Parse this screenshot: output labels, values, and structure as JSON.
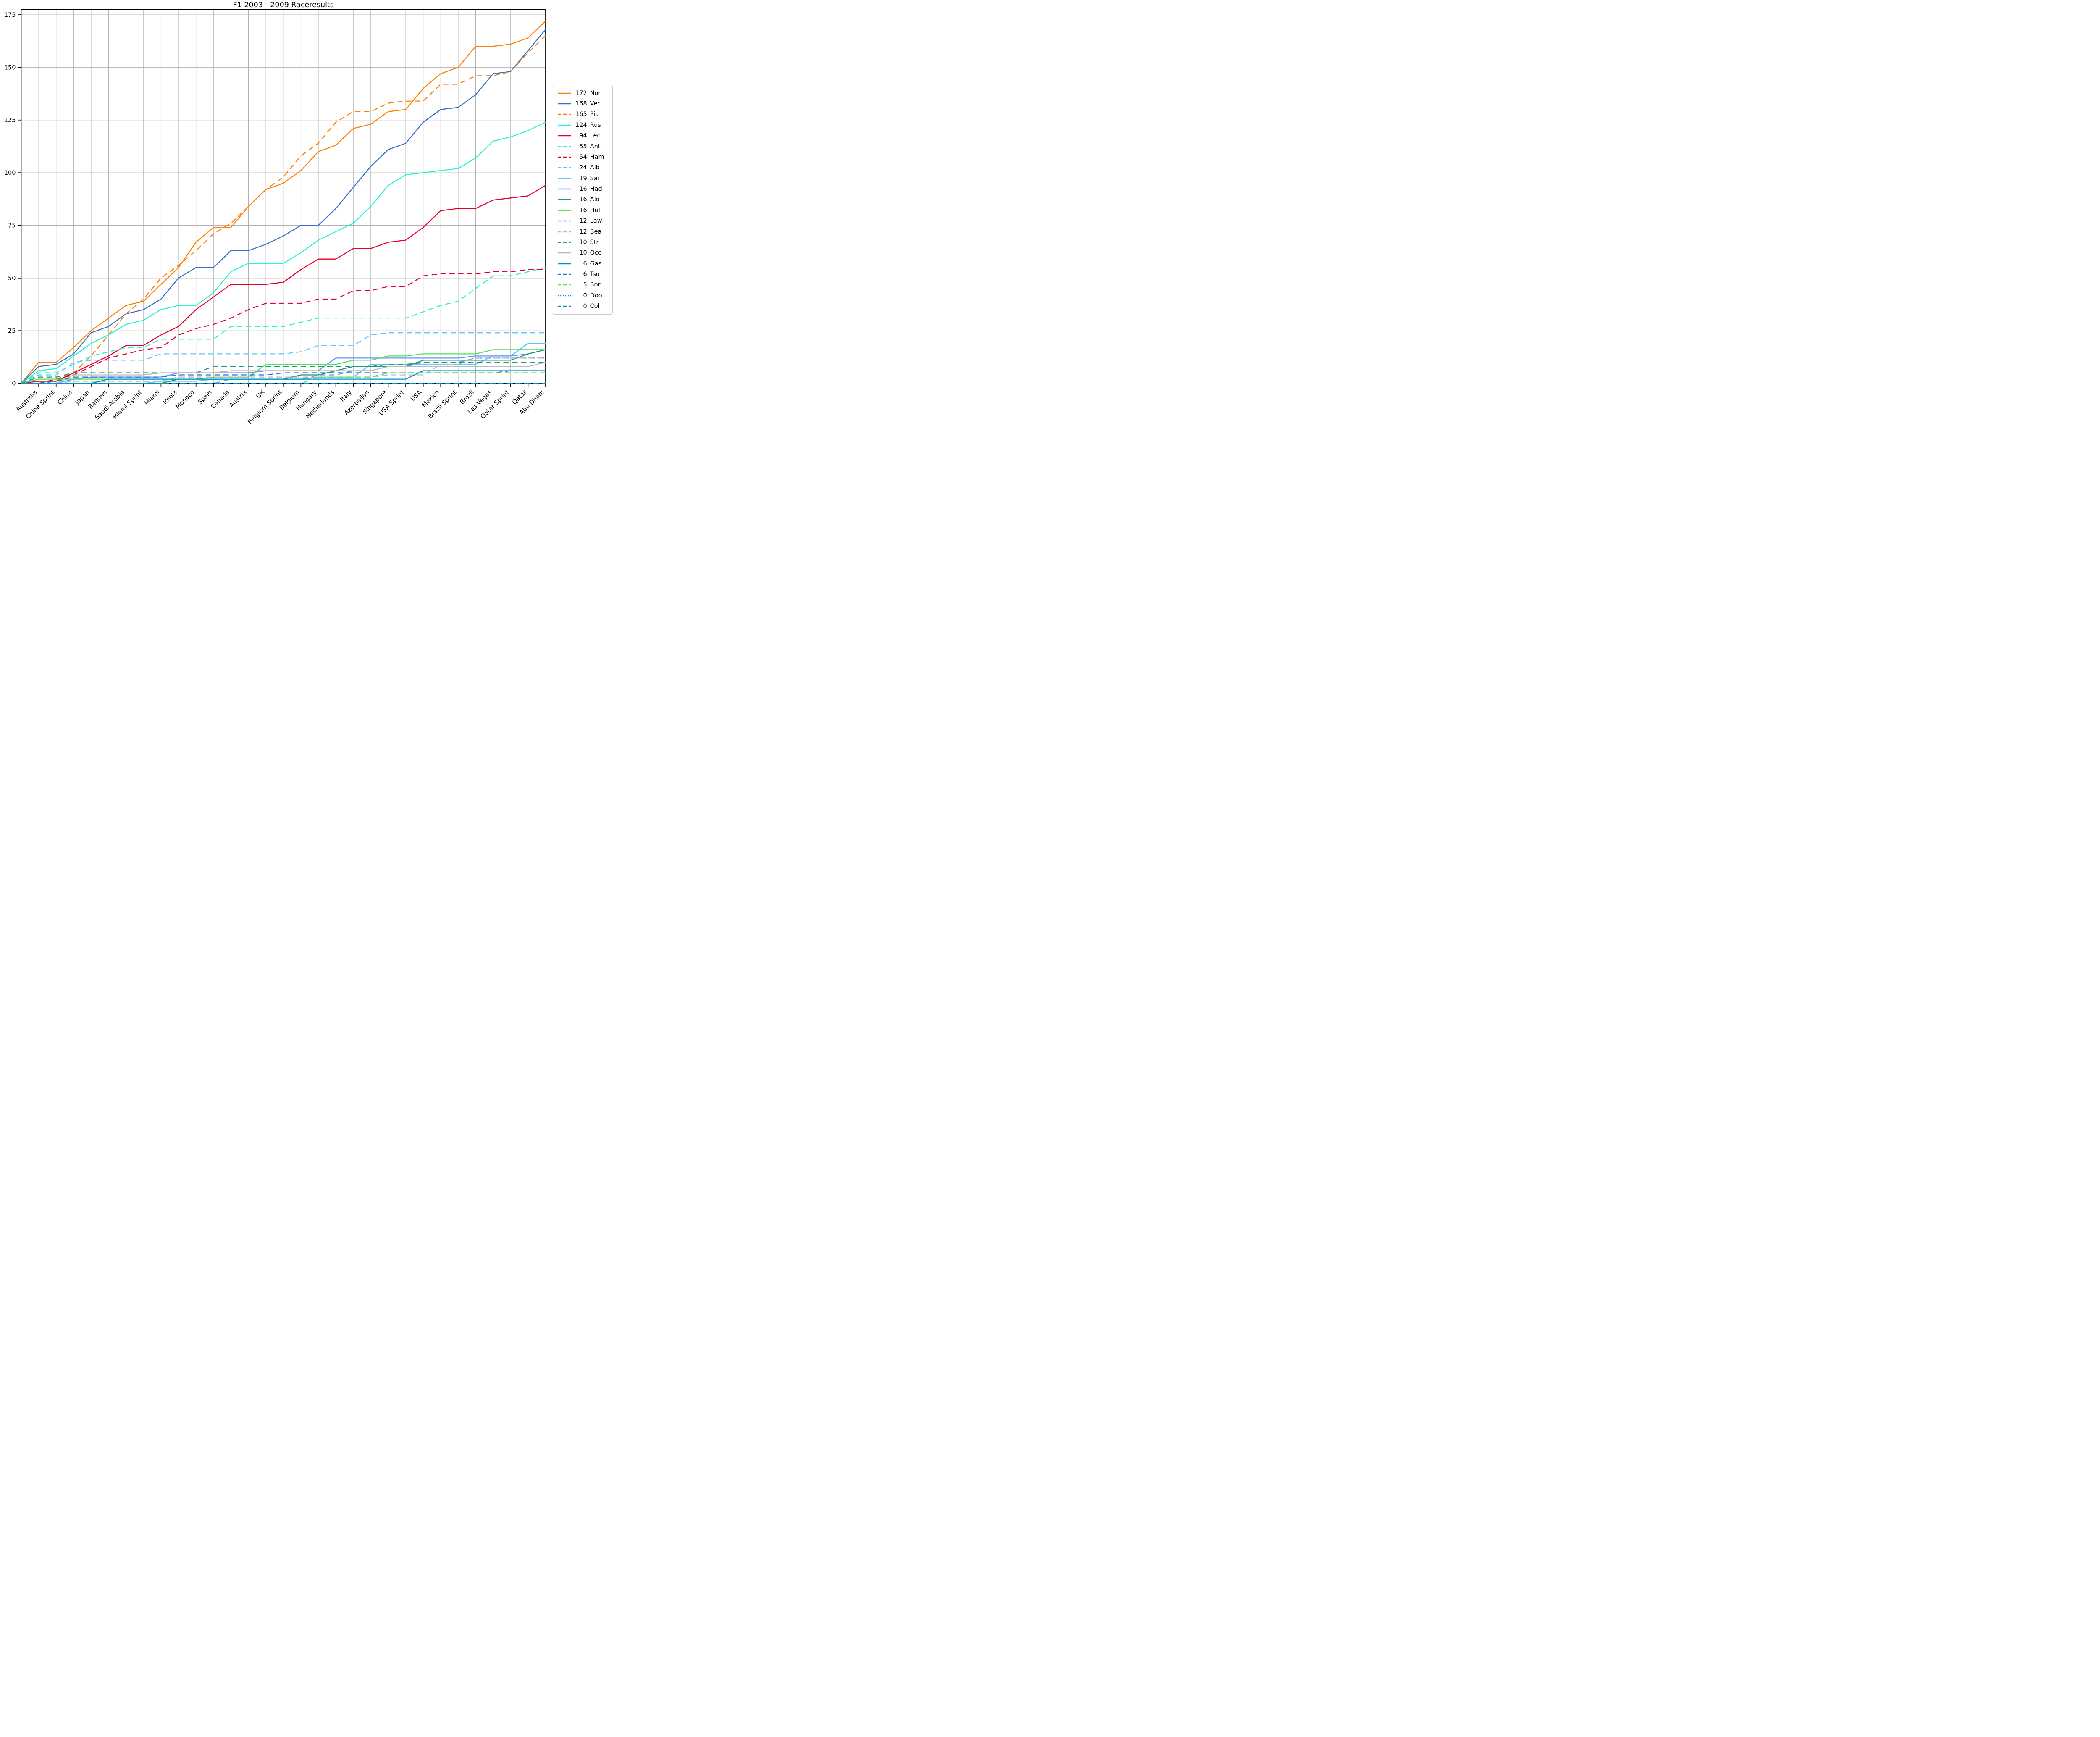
{
  "title": "F1 2003 - 2009 Raceresults",
  "chart_data": {
    "type": "line",
    "title": "F1 2003 - 2009 Raceresults",
    "xlabel": "",
    "ylabel": "",
    "grid": true,
    "legend_position": "right-outside",
    "ylim": [
      0,
      177
    ],
    "y_ticks": [
      0,
      25,
      50,
      75,
      100,
      125,
      150,
      175
    ],
    "x_tick_rotation": -45,
    "lines_start_at_zero_on_left_spine": true,
    "categories": [
      "Australia",
      "China Sprint",
      "China",
      "Japan",
      "Bahrain",
      "Saudi Arabia",
      "Miami Sprint",
      "Miami",
      "Imola",
      "Monaco",
      "Spain",
      "Canada",
      "Austria",
      "UK",
      "Belgium Sprint",
      "Belgium",
      "Hungary",
      "Netherlands",
      "Italy",
      "Azerbaijan",
      "Singapore",
      "USA Sprint",
      "USA",
      "Mexico",
      "Brazil Sprint",
      "Brazil",
      "Las Vegas",
      "Qatar Sprint",
      "Qatar",
      "Abu Dhabi"
    ],
    "series": [
      {
        "abbr": "Nor",
        "total": 172,
        "color": "#FF8000",
        "style": "solid",
        "values": [
          10,
          10,
          17,
          25,
          31,
          37,
          39,
          47,
          55,
          67,
          74,
          74,
          84,
          92,
          95,
          101,
          110,
          113,
          121,
          123,
          129,
          130,
          140,
          147,
          150,
          160,
          160,
          161,
          164,
          172
        ]
      },
      {
        "abbr": "Ver",
        "total": 168,
        "color": "#3671C6",
        "style": "solid",
        "values": [
          8,
          9,
          14,
          24,
          27,
          33,
          35,
          40,
          50,
          55,
          55,
          63,
          63,
          66,
          70,
          75,
          75,
          83,
          93,
          103,
          111,
          114,
          124,
          130,
          131,
          137,
          147,
          148,
          158,
          168
        ]
      },
      {
        "abbr": "Pia",
        "total": 165,
        "color": "#FF8000",
        "style": "dashed",
        "values": [
          0,
          2,
          5,
          13,
          23,
          33,
          40,
          50,
          56,
          63,
          71,
          76,
          84,
          92,
          98,
          108,
          114,
          124,
          129,
          129,
          133,
          134,
          134,
          142,
          142,
          146,
          146,
          148,
          157,
          165
        ]
      },
      {
        "abbr": "Rus",
        "total": 124,
        "color": "#27F4D2",
        "style": "solid",
        "values": [
          6,
          7,
          13,
          19,
          23,
          28,
          30,
          35,
          37,
          37,
          43,
          53,
          57,
          57,
          57,
          62,
          68,
          72,
          76,
          84,
          94,
          99,
          100,
          101,
          102,
          107,
          115,
          117,
          120,
          124
        ]
      },
      {
        "abbr": "Lec",
        "total": 94,
        "color": "#E8002D",
        "style": "solid",
        "values": [
          1,
          1,
          5,
          9,
          13,
          18,
          18,
          23,
          27,
          35,
          41,
          47,
          47,
          47,
          48,
          54,
          59,
          59,
          64,
          64,
          67,
          68,
          74,
          82,
          83,
          83,
          87,
          88,
          89,
          94
        ]
      },
      {
        "abbr": "Ant",
        "total": 55,
        "color": "#27F4D2",
        "style": "dashed",
        "values": [
          5,
          5,
          9,
          13,
          15,
          17,
          17,
          21,
          21,
          21,
          21,
          27,
          27,
          27,
          27,
          29,
          31,
          31,
          31,
          31,
          31,
          31,
          34,
          37,
          39,
          45,
          51,
          51,
          53,
          55
        ]
      },
      {
        "abbr": "Ham",
        "total": 54,
        "color": "#E8002D",
        "style": "dashed",
        "values": [
          0,
          2,
          4,
          8,
          12,
          14,
          16,
          17,
          23,
          26,
          28,
          31,
          35,
          38,
          38,
          38,
          40,
          40,
          44,
          44,
          46,
          46,
          51,
          52,
          52,
          52,
          53,
          53,
          54,
          54
        ]
      },
      {
        "abbr": "Alb",
        "total": 24,
        "color": "#64C4FF",
        "style": "dashed",
        "values": [
          4,
          4,
          10,
          11,
          11,
          11,
          11,
          14,
          14,
          14,
          14,
          14,
          14,
          14,
          14,
          15,
          18,
          18,
          18,
          23,
          24,
          24,
          24,
          24,
          24,
          24,
          24,
          24,
          24,
          24
        ]
      },
      {
        "abbr": "Sai",
        "total": 19,
        "color": "#64C4FF",
        "style": "solid",
        "values": [
          0,
          0,
          0,
          0,
          0,
          0,
          0,
          1,
          1,
          1,
          2,
          2,
          2,
          2,
          2,
          2,
          3,
          3,
          3,
          9,
          9,
          9,
          9,
          9,
          9,
          9,
          13,
          13,
          19,
          19
        ]
      },
      {
        "abbr": "Had",
        "total": 16,
        "color": "#6692FF",
        "style": "solid",
        "values": [
          0,
          0,
          2,
          3,
          3,
          3,
          3,
          3,
          5,
          5,
          5,
          5,
          5,
          6,
          6,
          6,
          6,
          12,
          12,
          12,
          12,
          12,
          12,
          12,
          12,
          13,
          13,
          13,
          14,
          16
        ]
      },
      {
        "abbr": "Alo",
        "total": 16,
        "color": "#229971",
        "style": "solid",
        "values": [
          0,
          0,
          0,
          0,
          0,
          0,
          0,
          0,
          2,
          2,
          2,
          2,
          2,
          2,
          2,
          4,
          4,
          6,
          8,
          8,
          8,
          8,
          11,
          11,
          11,
          11,
          11,
          11,
          14,
          16
        ]
      },
      {
        "abbr": "Hül",
        "total": 16,
        "color": "#52E252",
        "style": "solid",
        "values": [
          2,
          2,
          2,
          2,
          2,
          2,
          2,
          2,
          2,
          2,
          3,
          3,
          3,
          9,
          9,
          9,
          9,
          9,
          11,
          11,
          13,
          13,
          14,
          14,
          14,
          14,
          16,
          16,
          16,
          16
        ]
      },
      {
        "abbr": "Law",
        "total": 12,
        "color": "#6692FF",
        "style": "dashed",
        "values": [
          0,
          0,
          0,
          0,
          0,
          0,
          0,
          0,
          0,
          0,
          0,
          2,
          2,
          2,
          2,
          2,
          4,
          4,
          6,
          6,
          8,
          8,
          10,
          10,
          10,
          12,
          12,
          12,
          12,
          12
        ]
      },
      {
        "abbr": "Bea",
        "total": 12,
        "color": "#B6BABD",
        "style": "dashed",
        "values": [
          0,
          0,
          1,
          1,
          1,
          1,
          1,
          1,
          3,
          3,
          3,
          3,
          3,
          3,
          3,
          3,
          3,
          3,
          3,
          3,
          4,
          4,
          4,
          9,
          9,
          12,
          12,
          12,
          12,
          12
        ]
      },
      {
        "abbr": "Str",
        "total": 10,
        "color": "#229971",
        "style": "dashed",
        "values": [
          3,
          3,
          5,
          5,
          5,
          5,
          5,
          5,
          5,
          5,
          8,
          8,
          8,
          8,
          8,
          8,
          8,
          8,
          8,
          8,
          9,
          9,
          10,
          10,
          10,
          10,
          10,
          10,
          10,
          10
        ]
      },
      {
        "abbr": "Oco",
        "total": 10,
        "color": "#B6BABD",
        "style": "solid",
        "values": [
          0,
          0,
          4,
          4,
          4,
          4,
          4,
          5,
          5,
          5,
          5,
          6,
          6,
          6,
          6,
          6,
          6,
          6,
          6,
          6,
          8,
          8,
          8,
          8,
          8,
          8,
          8,
          8,
          8,
          10
        ]
      },
      {
        "abbr": "Gas",
        "total": 6,
        "color": "#0093CC",
        "style": "solid",
        "values": [
          0,
          0,
          0,
          0,
          2,
          2,
          2,
          2,
          2,
          2,
          2,
          2,
          2,
          2,
          2,
          2,
          2,
          2,
          2,
          2,
          2,
          2,
          6,
          6,
          6,
          6,
          6,
          6,
          6,
          6
        ]
      },
      {
        "abbr": "Tsu",
        "total": 6,
        "color": "#3671C6",
        "style": "dashed",
        "values": [
          0,
          1,
          3,
          3,
          3,
          3,
          3,
          3,
          4,
          4,
          4,
          4,
          4,
          4,
          5,
          5,
          5,
          5,
          5,
          5,
          5,
          5,
          5,
          5,
          5,
          5,
          5,
          6,
          6,
          6
        ]
      },
      {
        "abbr": "Bor",
        "total": 5,
        "color": "#52E252",
        "style": "dashed",
        "values": [
          0,
          0,
          0,
          0,
          0,
          0,
          0,
          0,
          0,
          0,
          0,
          0,
          0,
          0,
          0,
          0,
          3,
          3,
          3,
          3,
          5,
          5,
          5,
          5,
          5,
          5,
          5,
          5,
          5,
          5
        ]
      },
      {
        "abbr": "Doo",
        "total": 0,
        "color": "#0093CC",
        "style": "dotted",
        "values": [
          0,
          0,
          0,
          0,
          0,
          0,
          0,
          0,
          0,
          0,
          0,
          0,
          0,
          0,
          0,
          0,
          0,
          0,
          0,
          0,
          0,
          0,
          0,
          0,
          0,
          0,
          0,
          0,
          0,
          0
        ]
      },
      {
        "abbr": "Col",
        "total": 0,
        "color": "#0093CC",
        "style": "dashed",
        "values": [
          0,
          0,
          0,
          0,
          0,
          0,
          0,
          0,
          0,
          0,
          0,
          0,
          0,
          0,
          0,
          0,
          0,
          0,
          0,
          0,
          0,
          0,
          0,
          0,
          0,
          0,
          0,
          0,
          0,
          0
        ]
      }
    ]
  }
}
